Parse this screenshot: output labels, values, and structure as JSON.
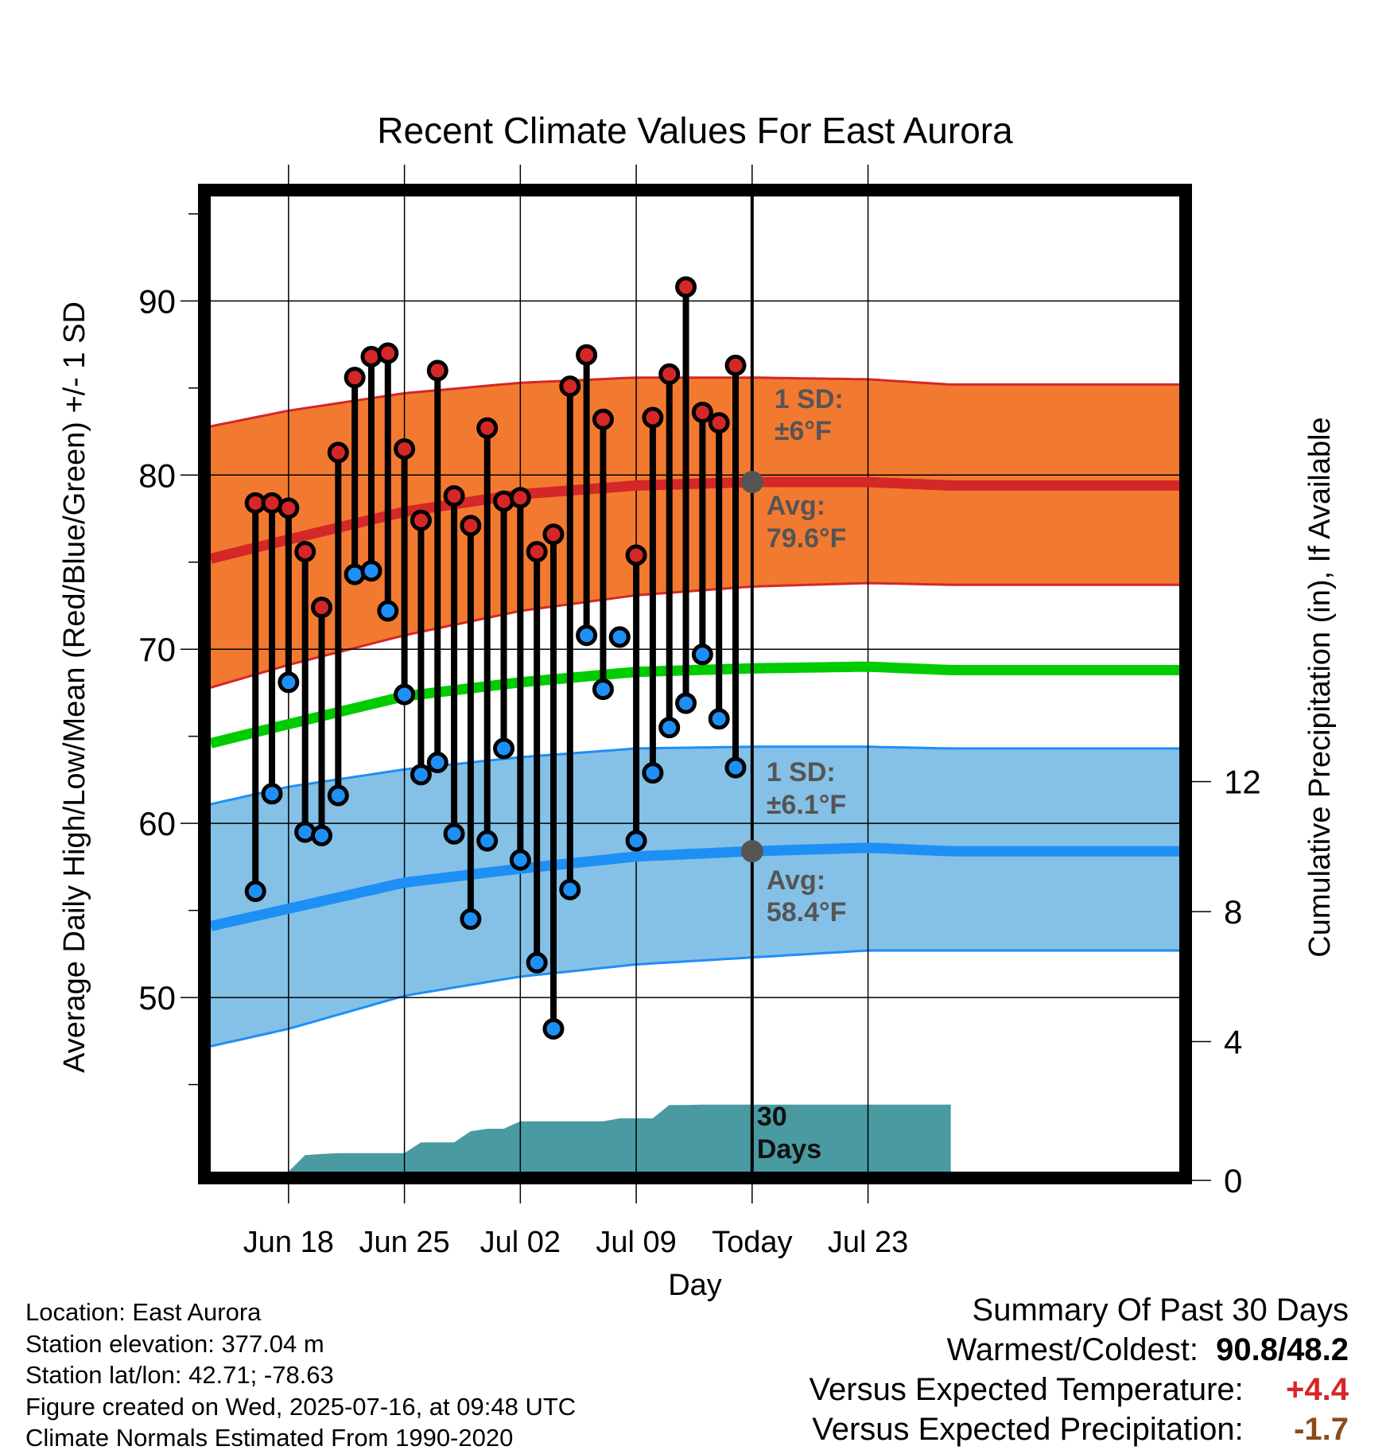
{
  "chart_data": {
    "type": "line",
    "title": "Recent Climate Values For East Aurora",
    "xlabel": "Day",
    "ylabel": "Average Daily High/Low/Mean (Red/Blue/Green) +/- 1 SD",
    "y2label": "Cumulative Precipitation (in), If Available",
    "ylim": [
      40,
      96
    ],
    "y2lim": [
      0,
      30
    ],
    "y_ticks": [
      50,
      60,
      70,
      80,
      90
    ],
    "y2_ticks": [
      0,
      4,
      8,
      12
    ],
    "xlim": [
      -4.7,
      53.8
    ],
    "x_ticks": [
      {
        "day": 0,
        "label": "Jun 18"
      },
      {
        "day": 7,
        "label": "Jun 25"
      },
      {
        "day": 14,
        "label": "Jul 02"
      },
      {
        "day": 21,
        "label": "Jul 09"
      },
      {
        "day": 28,
        "label": "Today"
      },
      {
        "day": 35,
        "label": "Jul 23"
      }
    ],
    "grid": true,
    "today_day": 28,
    "observations": {
      "days": [
        -2,
        -1,
        0,
        1,
        2,
        3,
        4,
        5,
        6,
        7,
        8,
        9,
        10,
        11,
        12,
        13,
        14,
        15,
        16,
        17,
        18,
        19,
        20,
        21,
        22,
        23,
        24,
        25,
        26,
        27
      ],
      "high": [
        78.4,
        78.4,
        78.1,
        75.6,
        72.4,
        81.3,
        85.6,
        86.8,
        87,
        81.5,
        77.4,
        86,
        78.8,
        77.1,
        82.7,
        78.5,
        78.7,
        75.6,
        76.6,
        85.1,
        86.9,
        83.2,
        70.7,
        75.4,
        83.3,
        85.8,
        90.8,
        83.6,
        83,
        86.3
      ],
      "low": [
        56.1,
        61.7,
        68.1,
        59.5,
        59.3,
        61.6,
        74.3,
        74.5,
        72.2,
        67.4,
        62.8,
        63.5,
        59.4,
        54.5,
        59,
        64.3,
        57.9,
        52,
        48.2,
        56.2,
        70.8,
        67.7,
        70.7,
        59,
        62.9,
        65.5,
        66.9,
        69.7,
        66,
        63.2
      ]
    },
    "normals": {
      "days": [
        -4.7,
        0,
        7,
        14,
        21,
        28,
        35,
        40
      ],
      "high_avg": [
        75.2,
        76.3,
        77.9,
        78.9,
        79.4,
        79.6,
        79.6,
        79.4
      ],
      "high_upper": [
        82.8,
        83.7,
        84.7,
        85.3,
        85.6,
        85.6,
        85.5,
        85.2
      ],
      "high_lower": [
        67.8,
        69.1,
        70.8,
        72.2,
        73.1,
        73.6,
        73.8,
        73.7
      ],
      "mean_avg": [
        64.6,
        65.7,
        67.3,
        68.1,
        68.7,
        68.9,
        69,
        68.8
      ],
      "low_avg": [
        54.1,
        55.1,
        56.6,
        57.4,
        58.1,
        58.4,
        58.6,
        58.4
      ],
      "low_upper": [
        61.1,
        62.1,
        63.1,
        63.8,
        64.3,
        64.4,
        64.4,
        64.3
      ],
      "low_lower": [
        47.2,
        48.2,
        50.1,
        51.2,
        51.9,
        52.3,
        52.7,
        52.7
      ]
    },
    "precipitation": {
      "days": [
        0,
        1,
        2,
        3,
        4,
        5,
        6,
        7,
        8,
        9,
        10,
        11,
        12,
        13,
        14,
        15,
        16,
        17,
        18,
        19,
        20,
        21,
        22,
        23,
        24,
        25,
        26,
        27,
        28,
        40
      ],
      "cumulative": [
        0,
        0.51,
        0.54,
        0.57,
        0.57,
        0.57,
        0.57,
        0.57,
        0.9,
        0.9,
        0.9,
        1.24,
        1.32,
        1.32,
        1.55,
        1.55,
        1.55,
        1.55,
        1.55,
        1.55,
        1.64,
        1.64,
        1.64,
        2.05,
        2.05,
        2.06,
        2.06,
        2.06,
        2.06,
        2.06
      ]
    },
    "annotations": {
      "high_sd_label": "1 SD:",
      "high_sd_value": "±6°F",
      "high_avg_label": "Avg:",
      "high_avg_value": "79.6°F",
      "low_sd_label": "1 SD:",
      "low_sd_value": "±6.1°F",
      "low_avg_label": "Avg:",
      "low_avg_value": "58.4°F",
      "precip_label_1": "30",
      "precip_label_2": "Days"
    },
    "colors": {
      "high_band": "#f27a30",
      "high_line": "#d42727",
      "low_band": "#85c1e6",
      "low_line": "#1e8ff5",
      "mean_line": "#00cc00",
      "precip_fill": "#4a9aa2",
      "annotation_text": "#555555",
      "high_marker": "#d42727",
      "low_marker": "#1e8ff5"
    }
  },
  "info": {
    "location": "Location: East Aurora",
    "elevation": "Station elevation: 377.04 m",
    "latlon": "Station lat/lon: 42.71; -78.63",
    "created": "Figure created on Wed, 2025-07-16, at 09:48 UTC",
    "normals": "Climate Normals Estimated From 1990-2020"
  },
  "summary": {
    "title": "Summary Of Past 30 Days",
    "warmest_label": "Warmest/Coldest:",
    "warmest_value": "90.8/48.2",
    "temp_label": "Versus Expected Temperature:",
    "temp_value": "+4.4",
    "temp_color": "#d42727",
    "precip_label": "Versus Expected Precipitation:",
    "precip_value": "-1.7",
    "precip_color": "#8b4a1a"
  }
}
